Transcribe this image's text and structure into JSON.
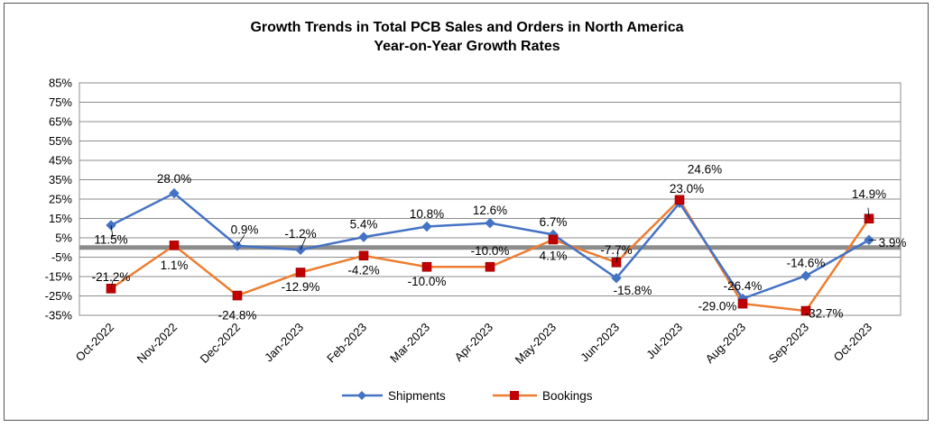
{
  "chart_data": {
    "type": "line",
    "title": "Growth Trends in Total PCB Sales and Orders in North America",
    "subtitle": "Year-on-Year Growth Rates",
    "xlabel": "",
    "ylabel": "",
    "categories": [
      "Oct-2022",
      "Nov-2022",
      "Dec-2022",
      "Jan-2023",
      "Feb-2023",
      "Mar-2023",
      "Apr-2023",
      "May-2023",
      "Jun-2023",
      "Jul-2023",
      "Aug-2023",
      "Sep-2023",
      "Oct-2023"
    ],
    "ylim": [
      -35,
      85
    ],
    "yticks": [
      85,
      75,
      65,
      55,
      45,
      35,
      25,
      15,
      5,
      -5,
      -15,
      -25,
      -35
    ],
    "ytick_labels": [
      "85%",
      "75%",
      "65%",
      "55%",
      "45%",
      "35%",
      "25%",
      "15%",
      "5%",
      "-5%",
      "-15%",
      "-25%",
      "-35%"
    ],
    "grid": true,
    "legend": "bottom",
    "reference_line": 0,
    "series": [
      {
        "name": "Shipments",
        "color": "#4472C4",
        "marker": "diamond",
        "values": [
          11.5,
          28.0,
          0.9,
          -1.2,
          5.4,
          10.8,
          12.6,
          6.7,
          -15.8,
          23.0,
          -26.4,
          -14.6,
          3.9
        ],
        "labels": [
          "11.5%",
          "28.0%",
          "0.9%",
          "-1.2%",
          "5.4%",
          "10.8%",
          "12.6%",
          "6.7%",
          "-15.8%",
          "23.0%",
          "-26.4%",
          "-14.6%",
          "3.9%"
        ]
      },
      {
        "name": "Bookings",
        "color": "#ED7D31",
        "marker_color": "#C00000",
        "marker": "square",
        "values": [
          -21.2,
          1.1,
          -24.8,
          -12.9,
          -4.2,
          -10.0,
          -10.0,
          4.1,
          -7.7,
          24.6,
          -29.0,
          -32.7,
          14.9
        ],
        "labels": [
          "-21.2%",
          "1.1%",
          "-24.8%",
          "-12.9%",
          "-4.2%",
          "-10.0%",
          "-10.0%",
          "4.1%",
          "-7.7%",
          "24.6%",
          "-29.0%",
          "-32.7%",
          "14.9%"
        ]
      }
    ]
  }
}
